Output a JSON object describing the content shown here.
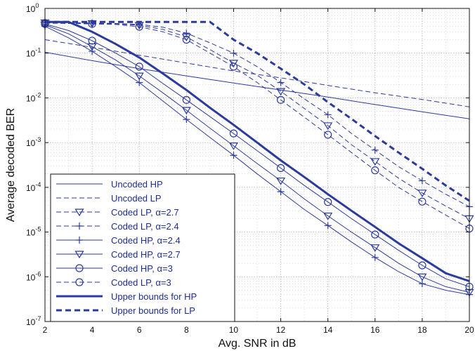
{
  "chart_data": {
    "type": "line",
    "title": "",
    "xlabel": "Avg. SNR in dB",
    "ylabel": "Average decoded BER",
    "xlim": [
      2,
      20
    ],
    "ylim": [
      1e-07,
      1
    ],
    "yscale": "log",
    "grid": true,
    "legend_position": "bottom-left",
    "x_ticks": [
      "2",
      "4",
      "6",
      "8",
      "10",
      "12",
      "14",
      "16",
      "18",
      "20"
    ],
    "y_ticks": [
      {
        "base": "10",
        "exp": "0"
      },
      {
        "base": "10",
        "exp": "-1"
      },
      {
        "base": "10",
        "exp": "-2"
      },
      {
        "base": "10",
        "exp": "-3"
      },
      {
        "base": "10",
        "exp": "-4"
      },
      {
        "base": "10",
        "exp": "-5"
      },
      {
        "base": "10",
        "exp": "-6"
      },
      {
        "base": "10",
        "exp": "-7"
      }
    ],
    "color": "#2b3a9e",
    "series": [
      {
        "name": "Uncoded HP",
        "style": "thin-solid",
        "marker": "none",
        "x": [
          2,
          4,
          6,
          8,
          10,
          12,
          14,
          16,
          18,
          20
        ],
        "y": [
          0.105,
          0.068,
          0.045,
          0.031,
          0.0215,
          0.015,
          0.0104,
          0.0071,
          0.0049,
          0.0034
        ]
      },
      {
        "name": "Uncoded LP",
        "style": "thin-dashed",
        "marker": "none",
        "x": [
          2,
          4,
          6,
          8,
          10,
          12,
          14,
          16,
          18,
          20
        ],
        "y": [
          0.2,
          0.135,
          0.09,
          0.06,
          0.04,
          0.028,
          0.019,
          0.013,
          0.0092,
          0.0063
        ]
      },
      {
        "name": "Coded LP, α=2.7",
        "style": "thin-dashed",
        "marker": "triangle",
        "x": [
          2,
          3,
          4,
          5,
          6,
          7,
          8,
          9,
          10,
          11,
          12,
          13,
          14,
          15,
          16,
          17,
          18,
          19,
          20
        ],
        "y": [
          0.48,
          0.47,
          0.46,
          0.45,
          0.42,
          0.34,
          0.23,
          0.12,
          0.06,
          0.032,
          0.014,
          0.0058,
          0.0024,
          0.0009,
          0.00038,
          0.00016,
          7.5e-05,
          3.8e-05,
          2e-05
        ]
      },
      {
        "name": "Coded LP, α=2.4",
        "style": "thin-dashed",
        "marker": "plus",
        "x": [
          2,
          3,
          4,
          5,
          6,
          7,
          8,
          9,
          10,
          11,
          12,
          13,
          14,
          15,
          16,
          17,
          18,
          19,
          20
        ],
        "y": [
          0.49,
          0.48,
          0.47,
          0.46,
          0.44,
          0.38,
          0.28,
          0.17,
          0.1,
          0.05,
          0.022,
          0.0095,
          0.0042,
          0.0016,
          0.00068,
          0.00029,
          0.00014,
          7e-05,
          3.7e-05
        ]
      },
      {
        "name": "Coded HP, α=2.4",
        "style": "thin-solid",
        "marker": "plus",
        "x": [
          2,
          3,
          4,
          5,
          6,
          7,
          8,
          9,
          10,
          11,
          12,
          13,
          14,
          15,
          16,
          17,
          18,
          19,
          20
        ],
        "y": [
          0.4,
          0.22,
          0.11,
          0.05,
          0.022,
          0.0085,
          0.0033,
          0.0013,
          0.00052,
          0.0002,
          8e-05,
          3.2e-05,
          1.4e-05,
          6e-06,
          2.7e-06,
          1.3e-06,
          7e-07,
          5e-07,
          4e-07
        ]
      },
      {
        "name": "Coded HP, α=2.7",
        "style": "thin-solid",
        "marker": "triangle",
        "x": [
          2,
          3,
          4,
          5,
          6,
          7,
          8,
          9,
          10,
          11,
          12,
          13,
          14,
          15,
          16,
          17,
          18,
          19,
          20
        ],
        "y": [
          0.43,
          0.27,
          0.14,
          0.07,
          0.031,
          0.013,
          0.0053,
          0.0021,
          0.00085,
          0.00034,
          0.00014,
          5.5e-05,
          2.3e-05,
          1e-05,
          4.5e-06,
          2e-06,
          1e-06,
          6e-07,
          4.5e-07
        ]
      },
      {
        "name": "Coded HP, α=3",
        "style": "thin-solid",
        "marker": "circle",
        "x": [
          2,
          3,
          4,
          5,
          6,
          7,
          8,
          9,
          10,
          11,
          12,
          13,
          14,
          15,
          16,
          17,
          18,
          19,
          20
        ],
        "y": [
          0.45,
          0.32,
          0.19,
          0.1,
          0.05,
          0.021,
          0.009,
          0.0038,
          0.0016,
          0.00066,
          0.00027,
          0.00011,
          4.7e-05,
          2e-05,
          8.8e-06,
          3.9e-06,
          1.8e-06,
          9e-07,
          6e-07
        ]
      },
      {
        "name": "Coded LP, α=3",
        "style": "thin-dashed",
        "marker": "circle",
        "x": [
          2,
          3,
          4,
          5,
          6,
          7,
          8,
          9,
          10,
          11,
          12,
          13,
          14,
          15,
          16,
          17,
          18,
          19,
          20
        ],
        "y": [
          0.47,
          0.46,
          0.45,
          0.44,
          0.39,
          0.3,
          0.2,
          0.1,
          0.05,
          0.022,
          0.009,
          0.0037,
          0.0015,
          0.0006,
          0.00024,
          0.0001,
          4.8e-05,
          2.4e-05,
          1.2e-05
        ]
      },
      {
        "name": "Upper bounds for HP",
        "style": "thick-solid",
        "marker": "none",
        "x": [
          2,
          3,
          4,
          5,
          6,
          7,
          8,
          9,
          10,
          11,
          12,
          13,
          14,
          15,
          16,
          17,
          18,
          19,
          20
        ],
        "y": [
          0.5,
          0.5,
          0.3,
          0.16,
          0.08,
          0.035,
          0.015,
          0.006,
          0.0025,
          0.001,
          0.0004,
          0.00017,
          7e-05,
          3e-05,
          1.3e-05,
          5.6e-06,
          2.6e-06,
          1.2e-06,
          8e-07
        ]
      },
      {
        "name": "Upper bounds for LP",
        "style": "thick-dashed",
        "marker": "none",
        "x": [
          2,
          3,
          4,
          5,
          6,
          7,
          8,
          9,
          10,
          11,
          12,
          13,
          14,
          15,
          16,
          17,
          18,
          19,
          20
        ],
        "y": [
          0.5,
          0.5,
          0.5,
          0.5,
          0.5,
          0.5,
          0.5,
          0.5,
          0.2,
          0.1,
          0.045,
          0.02,
          0.008,
          0.0034,
          0.0014,
          0.0006,
          0.00026,
          0.00011,
          5e-05
        ]
      }
    ]
  }
}
